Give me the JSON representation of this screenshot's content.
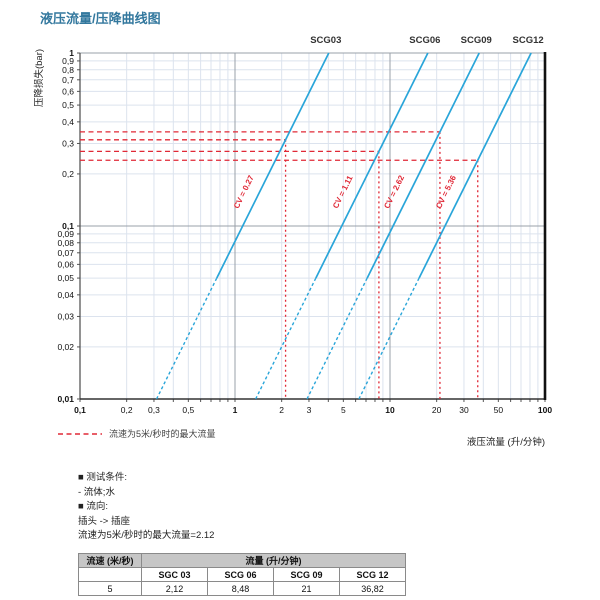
{
  "page_title": "液压流量/压降曲线图",
  "chart_data": {
    "type": "line",
    "title": "液压流量/压降曲线图",
    "x_scale": "log",
    "y_scale": "log",
    "xlim": [
      0.1,
      100
    ],
    "ylim": [
      0.01,
      1
    ],
    "xlabel": "液压流量 (升/分钟)",
    "ylabel": "压降损失(bar)",
    "grid": true,
    "x_tick_values": [
      0.1,
      0.2,
      0.3,
      0.5,
      1,
      2,
      3,
      5,
      10,
      20,
      30,
      50,
      100
    ],
    "x_tick_labels": [
      "0,1",
      "0,2",
      "0,3",
      "0,5",
      "1",
      "2",
      "3",
      "5",
      "10",
      "20",
      "30",
      "50",
      "100"
    ],
    "y_tick_values": [
      1,
      0.9,
      0.8,
      0.7,
      0.6,
      0.5,
      0.4,
      0.3,
      0.2,
      0.1,
      0.09,
      0.08,
      0.07,
      0.06,
      0.05,
      0.04,
      0.03,
      0.02,
      0.01
    ],
    "y_tick_labels": [
      "1",
      "0,9",
      "0,8",
      "0,7",
      "0,6",
      "0,5",
      "0,4",
      "0,3",
      "0,2",
      "0,1",
      "0,09",
      "0,08",
      "0,07",
      "0,06",
      "0,05",
      "0,04",
      "0,03",
      "0,02",
      "0,01"
    ],
    "curve_exponent": 1.8,
    "dash_below_pressure": 0.05,
    "series": [
      {
        "name": "SCG03",
        "cv": 0.27,
        "cv_label": "CV = 0.27",
        "max_flow_5ms": 2.12,
        "pressure_at_max_flow": 0.315
      },
      {
        "name": "SCG06",
        "cv": 1.11,
        "cv_label": "CV = 1.11",
        "max_flow_5ms": 8.48,
        "pressure_at_max_flow": 0.27
      },
      {
        "name": "SCG09",
        "cv": 2.62,
        "cv_label": "CV = 2.62",
        "max_flow_5ms": 21,
        "pressure_at_max_flow": 0.35
      },
      {
        "name": "SCG12",
        "cv": 5.36,
        "cv_label": "CV = 5.36",
        "max_flow_5ms": 36.82,
        "pressure_at_max_flow": 0.24
      }
    ],
    "legend": {
      "label": "流速为5米/秒时的最大流量"
    },
    "colors": {
      "curve": "#29a5d9",
      "guide": "#e02836",
      "grid_minor": "#dce3ee",
      "grid_major": "#9aa0a8",
      "axis": "#555555",
      "border_right": "#111111",
      "title": "#33789e",
      "series_label": "#333333"
    }
  },
  "notes": {
    "lines": [
      "■ 测试条件:",
      "- 流体;水",
      "■ 流向:",
      "插头 -> 插座",
      "流速为5米/秒时的最大流量=2.12"
    ]
  },
  "table": {
    "col1_header": "流速 (米/秒)",
    "group_header": "流量 (升/分钟)",
    "model_headers": [
      "SGC 03",
      "SCG 06",
      "SCG 09",
      "SCG 12"
    ],
    "row": {
      "speed": "5",
      "values": [
        "2,12",
        "8,48",
        "21",
        "36,82"
      ]
    }
  }
}
